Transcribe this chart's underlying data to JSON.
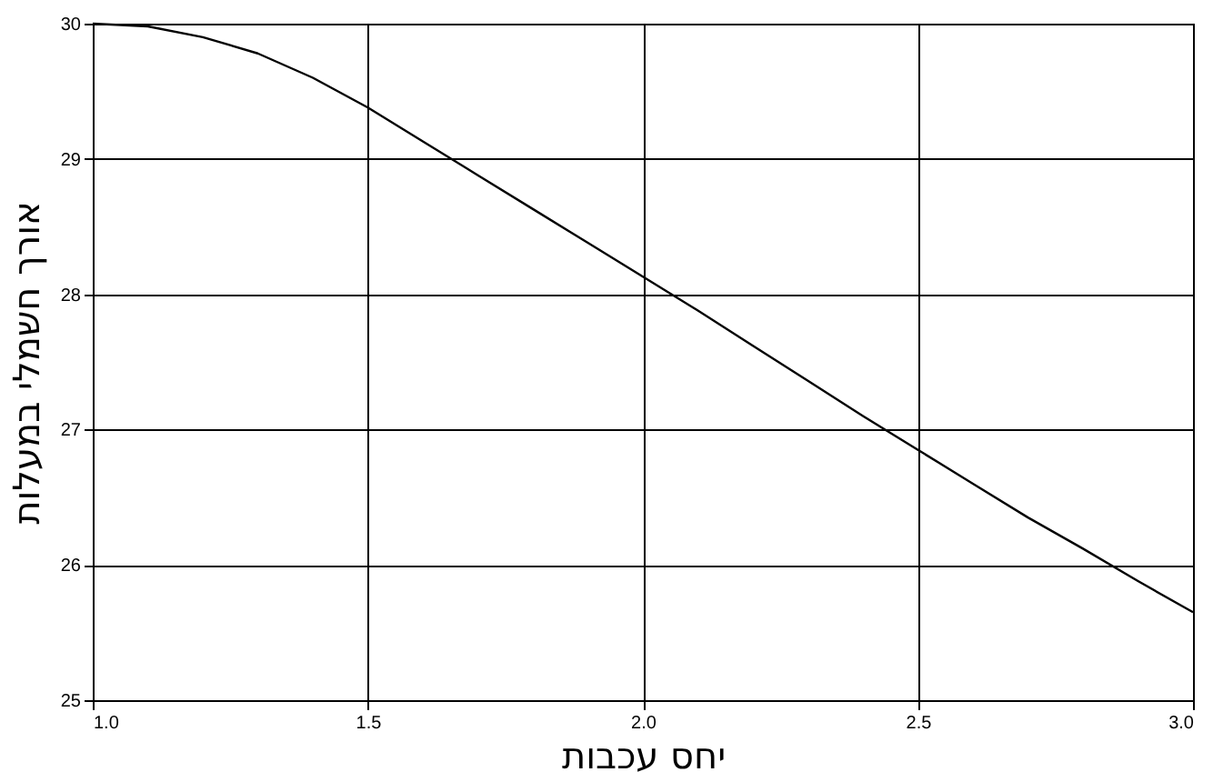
{
  "chart_data": {
    "type": "line",
    "xlabel": "יחס עכבות",
    "ylabel": "אורך חשמלי במעלות",
    "x": [
      1.0,
      1.1,
      1.2,
      1.3,
      1.4,
      1.5,
      1.6,
      1.7,
      1.8,
      1.9,
      2.0,
      2.1,
      2.2,
      2.3,
      2.4,
      2.5,
      2.6,
      2.7,
      2.8,
      2.9,
      3.0
    ],
    "series": [
      {
        "color": "#000000",
        "values": [
          30.0,
          29.98,
          29.9,
          29.78,
          29.6,
          29.38,
          29.13,
          28.88,
          28.63,
          28.38,
          28.13,
          27.88,
          27.62,
          27.36,
          27.1,
          26.85,
          26.6,
          26.35,
          26.12,
          25.88,
          25.65
        ]
      }
    ],
    "xlim": [
      1.0,
      3.0
    ],
    "xticks": [
      {
        "value": 1.0,
        "label": "1.0"
      },
      {
        "value": 1.5,
        "label": "1.5"
      },
      {
        "value": 2.0,
        "label": "2.0"
      },
      {
        "value": 2.5,
        "label": "2.5"
      },
      {
        "value": 3.0,
        "label": "3.0"
      }
    ],
    "ylim": [
      25,
      30
    ],
    "yticks": [
      25,
      26,
      27,
      28,
      29,
      30
    ],
    "grid": true,
    "marker": "none",
    "line_style": "solid"
  }
}
